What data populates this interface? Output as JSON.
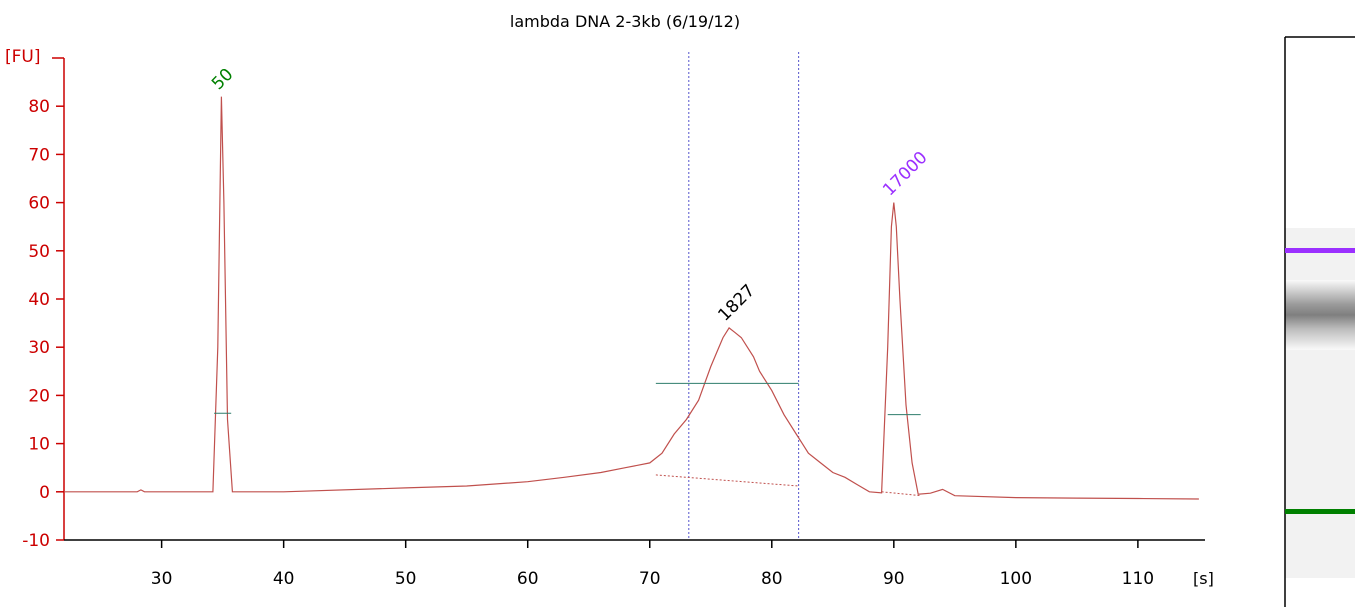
{
  "chart_data": {
    "type": "line",
    "title": "lambda DNA 2-3kb (6/19/12)",
    "xlabel": "[s]",
    "ylabel": "[FU]",
    "xlim": [
      22,
      115.5
    ],
    "ylim": [
      -10,
      90
    ],
    "xticks": [
      30,
      40,
      50,
      60,
      70,
      80,
      90,
      100,
      110
    ],
    "yticks": [
      -10,
      0,
      10,
      20,
      30,
      40,
      50,
      60,
      70,
      80
    ],
    "grid": false,
    "series": [
      {
        "color": "#c0504d",
        "x": [
          22,
          28,
          28.3,
          28.6,
          34.2,
          34.6,
          34.9,
          35.1,
          35.4,
          35.8,
          36.2,
          40,
          50,
          55,
          60,
          63,
          66,
          68,
          70,
          71,
          72,
          73,
          74,
          75,
          75.5,
          76,
          76.5,
          77,
          77.5,
          78,
          78.5,
          79,
          80,
          81,
          82,
          82.5,
          83,
          84,
          85,
          86,
          87,
          88,
          89,
          89.5,
          89.8,
          90,
          90.2,
          90.5,
          91,
          91.5,
          92,
          93,
          94,
          95,
          100,
          105,
          110,
          115
        ],
        "y": [
          0,
          0,
          0.4,
          0,
          0,
          30,
          82,
          60,
          15,
          0,
          0,
          0,
          0.8,
          1.2,
          2.1,
          3,
          4,
          5,
          6,
          8,
          12,
          15,
          19,
          26,
          29,
          32,
          34,
          33,
          32,
          30,
          28,
          25,
          21,
          16,
          12,
          10,
          8,
          6,
          4,
          3,
          1.5,
          0,
          -0.2,
          30,
          55,
          60,
          55,
          40,
          18,
          6,
          -0.5,
          -0.3,
          0.5,
          -0.8,
          -1.2,
          -1.3,
          -1.4,
          -1.5
        ]
      }
    ],
    "peak_labels": [
      {
        "text": "50",
        "x": 35,
        "y": 82,
        "color": "#008000"
      },
      {
        "text": "1827",
        "x": 76.5,
        "y": 34,
        "color": "#000000"
      },
      {
        "text": "17000",
        "x": 90,
        "y": 60,
        "color": "#9b30ff"
      }
    ],
    "region_markers": [
      73.2,
      82.2
    ],
    "half_height_marks": [
      {
        "x1": 34.3,
        "x2": 35.7,
        "y": 16.3
      },
      {
        "x1": 70.5,
        "x2": 82.2,
        "y": 22.5
      },
      {
        "x1": 89.5,
        "x2": 92.2,
        "y": 16
      }
    ],
    "baselines": [
      {
        "x1": 70.5,
        "y1": 3.5,
        "x2": 82.2,
        "y2": 1.2
      },
      {
        "x1": 89,
        "y1": 0,
        "x2": 92.2,
        "y2": -0.8
      }
    ],
    "gel": {
      "bands": [
        {
          "color": "#9b30ff"
        },
        {
          "color": "#808080"
        },
        {
          "color": "#008000"
        }
      ]
    }
  }
}
